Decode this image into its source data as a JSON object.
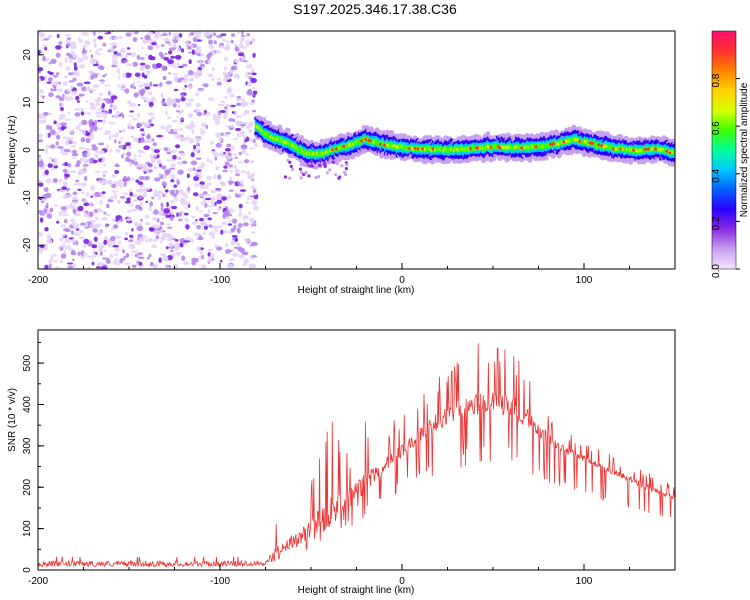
{
  "title": "S197.2025.346.17.38.C36",
  "chart_data": [
    {
      "type": "heatmap",
      "name": "spectrogram",
      "xlabel": "Height of straight line (km)",
      "ylabel": "Frequency (Hz)",
      "xlim": [
        -200,
        150
      ],
      "ylim": [
        -25,
        25
      ],
      "xticks": [
        -200,
        -100,
        0,
        100
      ],
      "xtick_labels": [
        "-200",
        "-100",
        "0",
        "100"
      ],
      "yticks": [
        -20,
        -10,
        0,
        10,
        20
      ],
      "ytick_labels": [
        "-20",
        "-10",
        "0",
        "10",
        "20"
      ],
      "noise_region_x": [
        -200,
        -80
      ],
      "signal_ridge": {
        "x": [
          -80,
          -75,
          -70,
          -65,
          -60,
          -55,
          -50,
          -45,
          -40,
          -35,
          -30,
          -20,
          -10,
          0,
          10,
          20,
          30,
          40,
          50,
          60,
          70,
          80,
          90,
          95,
          100,
          110,
          120,
          130,
          140,
          150
        ],
        "freq": [
          5,
          3.5,
          2.5,
          1.8,
          1.0,
          -0.2,
          -0.8,
          -0.9,
          -0.3,
          0.3,
          0.8,
          2.2,
          1.2,
          0.6,
          0.3,
          0.1,
          0.0,
          0.4,
          0.7,
          0.6,
          0.5,
          0.8,
          1.8,
          2.3,
          1.8,
          0.9,
          0.2,
          -0.2,
          0.3,
          -0.6
        ]
      },
      "colorbar": {
        "label": "Normalized spectral amplitude",
        "range": [
          0.0,
          1.0
        ],
        "ticks": [
          0.0,
          0.2,
          0.4,
          0.6,
          0.8
        ],
        "tick_labels": [
          "0.0",
          "0.2",
          "0.4",
          "0.6",
          "0.8"
        ],
        "colors": [
          "#f3e6ff",
          "#c9a0f0",
          "#8a2be2",
          "#2a00ff",
          "#0060ff",
          "#00c8ff",
          "#00ff9a",
          "#40ff00",
          "#d8ff00",
          "#ffd000",
          "#ff8000",
          "#ff3030",
          "#ff1070"
        ]
      }
    },
    {
      "type": "line",
      "name": "snr",
      "xlabel": "Height of straight line (km)",
      "ylabel": "SNR (10 * v/v)",
      "xlim": [
        -200,
        150
      ],
      "ylim": [
        0,
        580
      ],
      "xticks": [
        -200,
        -100,
        0,
        100
      ],
      "xtick_labels": [
        "-200",
        "-100",
        "0",
        "100"
      ],
      "yticks": [
        0,
        100,
        200,
        300,
        400,
        500
      ],
      "ytick_labels": [
        "0",
        "100",
        "200",
        "300",
        "400",
        "500"
      ],
      "color": "#ee3333",
      "envelope": {
        "x": [
          -200,
          -150,
          -100,
          -75,
          -70,
          -60,
          -50,
          -40,
          -30,
          -20,
          -10,
          0,
          10,
          20,
          30,
          40,
          50,
          60,
          70,
          80,
          90,
          100,
          110,
          120,
          130,
          140,
          150
        ],
        "base": [
          15,
          15,
          15,
          17,
          40,
          70,
          100,
          140,
          170,
          210,
          250,
          290,
          330,
          360,
          385,
          400,
          405,
          395,
          365,
          320,
          290,
          270,
          250,
          230,
          210,
          190,
          175
        ],
        "peak": [
          35,
          35,
          30,
          35,
          110,
          160,
          230,
          380,
          290,
          360,
          330,
          390,
          440,
          480,
          520,
          560,
          570,
          560,
          490,
          400,
          340,
          310,
          290,
          270,
          250,
          230,
          200
        ]
      }
    }
  ]
}
